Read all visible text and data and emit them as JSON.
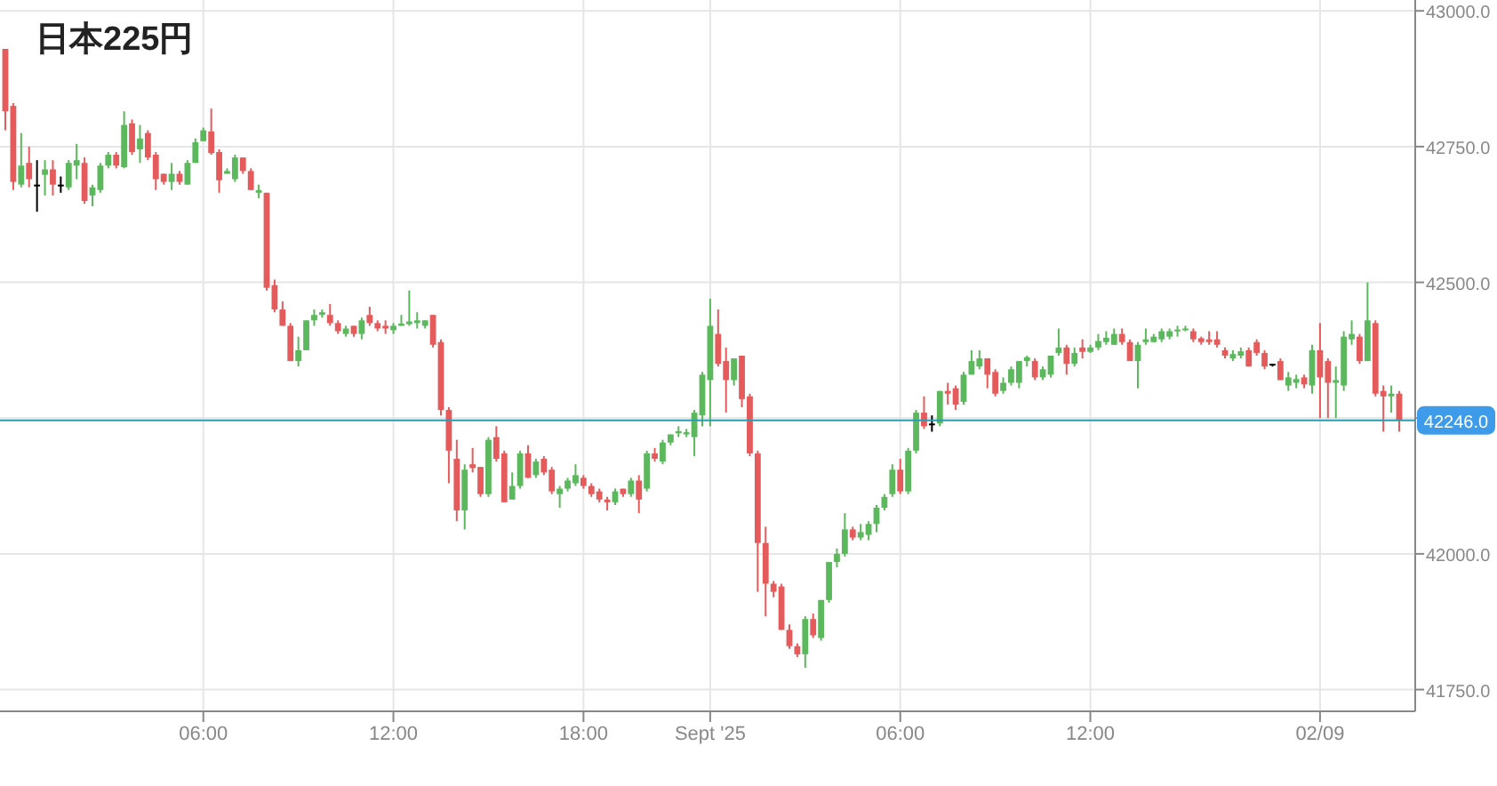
{
  "chart_data": {
    "type": "candlestick",
    "title": "日本225円",
    "categories": [
      null,
      null,
      null,
      null,
      null,
      null,
      null,
      null,
      null,
      null,
      null,
      null,
      null,
      null,
      null,
      null,
      null,
      null,
      null,
      null,
      null,
      null,
      null,
      null,
      null,
      "06:00",
      null,
      null,
      null,
      null,
      null,
      null,
      null,
      null,
      null,
      null,
      null,
      null,
      null,
      null,
      null,
      null,
      null,
      null,
      null,
      null,
      null,
      null,
      null,
      "12:00",
      null,
      null,
      null,
      null,
      null,
      null,
      null,
      null,
      null,
      null,
      null,
      null,
      null,
      null,
      null,
      null,
      null,
      null,
      null,
      null,
      null,
      null,
      null,
      "18:00",
      null,
      null,
      null,
      null,
      null,
      null,
      null,
      null,
      null,
      null,
      null,
      null,
      null,
      null,
      null,
      "Sept '25",
      null,
      null,
      null,
      null,
      null,
      null,
      null,
      null,
      null,
      null,
      null,
      null,
      null,
      null,
      null,
      null,
      null,
      null,
      null,
      null,
      null,
      null,
      null,
      "06:00",
      null,
      null,
      null,
      null,
      null,
      null,
      null,
      null,
      null,
      null,
      null,
      null,
      null,
      null,
      null,
      null,
      null,
      null,
      null,
      null,
      null,
      null,
      null,
      "12:00",
      null,
      null,
      null,
      null,
      null,
      null,
      null,
      null,
      null,
      null,
      null,
      null,
      null,
      null,
      null,
      null,
      null,
      null,
      null,
      null,
      null,
      null,
      null,
      null,
      null,
      null,
      null,
      null,
      "02/09",
      null,
      null,
      null,
      null,
      null,
      null,
      null,
      null,
      null,
      null
    ],
    "ohlc": [
      [
        42930,
        42930,
        42780,
        42815
      ],
      [
        42825,
        42830,
        42670,
        42685
      ],
      [
        42680,
        42775,
        42675,
        42715
      ],
      [
        42720,
        42750,
        42675,
        42690
      ],
      [
        42680,
        42725,
        42630,
        42680
      ],
      [
        42698,
        42725,
        42660,
        42708
      ],
      [
        42708,
        42725,
        42660,
        42680
      ],
      [
        42680,
        42695,
        42665,
        42680
      ],
      [
        42675,
        42725,
        42670,
        42720
      ],
      [
        42715,
        42755,
        42690,
        42725
      ],
      [
        42720,
        42730,
        42645,
        42650
      ],
      [
        42660,
        42680,
        42640,
        42675
      ],
      [
        42670,
        42720,
        42665,
        42715
      ],
      [
        42715,
        42740,
        42710,
        42735
      ],
      [
        42735,
        42740,
        42710,
        42715
      ],
      [
        42712,
        42815,
        42710,
        42790
      ],
      [
        42793,
        42800,
        42735,
        42740
      ],
      [
        42745,
        42790,
        42720,
        42765
      ],
      [
        42775,
        42780,
        42725,
        42730
      ],
      [
        42735,
        42740,
        42670,
        42690
      ],
      [
        42700,
        42700,
        42680,
        42685
      ],
      [
        42685,
        42720,
        42670,
        42700
      ],
      [
        42700,
        42705,
        42680,
        42685
      ],
      [
        42680,
        42725,
        42680,
        42720
      ],
      [
        42720,
        42765,
        42720,
        42758
      ],
      [
        42760,
        42785,
        42760,
        42780
      ],
      [
        42778,
        42820,
        42735,
        42738
      ],
      [
        42740,
        42745,
        42665,
        42688
      ],
      [
        42700,
        42710,
        42700,
        42705
      ],
      [
        42690,
        42735,
        42685,
        42730
      ],
      [
        42730,
        42730,
        42700,
        42705
      ],
      [
        42705,
        42710,
        42670,
        42670
      ],
      [
        42665,
        42680,
        42655,
        42670
      ],
      [
        42665,
        42665,
        42485,
        42490
      ],
      [
        42495,
        42505,
        42445,
        42450
      ],
      [
        42450,
        42465,
        42420,
        42420
      ],
      [
        42420,
        42425,
        42355,
        42355
      ],
      [
        42355,
        42400,
        42345,
        42375
      ],
      [
        42375,
        42430,
        42375,
        42430
      ],
      [
        42430,
        42450,
        42420,
        42440
      ],
      [
        42440,
        42450,
        42435,
        42445
      ],
      [
        42440,
        42460,
        42420,
        42425
      ],
      [
        42425,
        42430,
        42405,
        42410
      ],
      [
        42405,
        42420,
        42400,
        42415
      ],
      [
        42420,
        42420,
        42400,
        42405
      ],
      [
        42405,
        42435,
        42395,
        42430
      ],
      [
        42440,
        42455,
        42420,
        42425
      ],
      [
        42425,
        42430,
        42410,
        42415
      ],
      [
        42420,
        42430,
        42405,
        42415
      ],
      [
        42412,
        42425,
        42405,
        42420
      ],
      [
        42420,
        42440,
        42420,
        42424
      ],
      [
        42423,
        42485,
        42420,
        42428
      ],
      [
        42425,
        42445,
        42415,
        42430
      ],
      [
        42420,
        42430,
        42415,
        42430
      ],
      [
        42440,
        42440,
        42380,
        42385
      ],
      [
        42390,
        42395,
        42255,
        42265
      ],
      [
        42265,
        42270,
        42130,
        42190
      ],
      [
        42175,
        42210,
        42060,
        42080
      ],
      [
        42080,
        42165,
        42045,
        42155
      ],
      [
        42165,
        42195,
        42150,
        42158
      ],
      [
        42160,
        42160,
        42105,
        42110
      ],
      [
        42110,
        42215,
        42105,
        42210
      ],
      [
        42215,
        42235,
        42170,
        42175
      ],
      [
        42185,
        42190,
        42095,
        42095
      ],
      [
        42100,
        42150,
        42100,
        42125
      ],
      [
        42125,
        42190,
        42120,
        42185
      ],
      [
        42185,
        42200,
        42140,
        42140
      ],
      [
        42145,
        42175,
        42140,
        42170
      ],
      [
        42175,
        42180,
        42145,
        42150
      ],
      [
        42155,
        42160,
        42110,
        42115
      ],
      [
        42110,
        42125,
        42085,
        42120
      ],
      [
        42120,
        42140,
        42115,
        42135
      ],
      [
        42130,
        42165,
        42125,
        42145
      ],
      [
        42140,
        42145,
        42120,
        42125
      ],
      [
        42125,
        42130,
        42105,
        42110
      ],
      [
        42115,
        42120,
        42095,
        42100
      ],
      [
        42100,
        42105,
        42080,
        42095
      ],
      [
        42095,
        42120,
        42090,
        42115
      ],
      [
        42120,
        42120,
        42105,
        42110
      ],
      [
        42110,
        42140,
        42105,
        42135
      ],
      [
        42135,
        42145,
        42075,
        42100
      ],
      [
        42120,
        42190,
        42115,
        42185
      ],
      [
        42185,
        42195,
        42170,
        42175
      ],
      [
        42170,
        42210,
        42165,
        42205
      ],
      [
        42205,
        42220,
        42200,
        42220
      ],
      [
        42222,
        42235,
        42215,
        42226
      ],
      [
        42220,
        42230,
        42215,
        42224
      ],
      [
        42215,
        42265,
        42180,
        42260
      ],
      [
        42255,
        42335,
        42235,
        42330
      ],
      [
        42320,
        42470,
        42235,
        42420
      ],
      [
        42405,
        42450,
        42345,
        42350
      ],
      [
        42355,
        42380,
        42260,
        42320
      ],
      [
        42320,
        42360,
        42310,
        42360
      ],
      [
        42365,
        42365,
        42270,
        42285
      ],
      [
        42290,
        42295,
        42180,
        42185
      ],
      [
        42185,
        42190,
        41930,
        42020
      ],
      [
        42020,
        42050,
        41885,
        41945
      ],
      [
        41945,
        41950,
        41920,
        41930
      ],
      [
        41940,
        41945,
        41860,
        41860
      ],
      [
        41860,
        41870,
        41825,
        41830
      ],
      [
        41830,
        41835,
        41810,
        41815
      ],
      [
        41815,
        41885,
        41790,
        41880
      ],
      [
        41880,
        41890,
        41845,
        41850
      ],
      [
        41845,
        41915,
        41840,
        41915
      ],
      [
        41915,
        41985,
        41910,
        41985
      ],
      [
        41985,
        42010,
        41975,
        42000
      ],
      [
        42000,
        42075,
        41995,
        42045
      ],
      [
        42045,
        42050,
        42025,
        42030
      ],
      [
        42030,
        42055,
        42025,
        42040
      ],
      [
        42035,
        42060,
        42025,
        42055
      ],
      [
        42055,
        42090,
        42040,
        42085
      ],
      [
        42085,
        42110,
        42080,
        42105
      ],
      [
        42110,
        42165,
        42105,
        42155
      ],
      [
        42155,
        42175,
        42110,
        42115
      ],
      [
        42115,
        42195,
        42110,
        42190
      ],
      [
        42190,
        42265,
        42185,
        42260
      ],
      [
        42260,
        42290,
        42230,
        42235
      ],
      [
        42240,
        42255,
        42225,
        42240
      ],
      [
        42240,
        42300,
        42235,
        42300
      ],
      [
        42300,
        42315,
        42275,
        42295
      ],
      [
        42305,
        42310,
        42265,
        42275
      ],
      [
        42280,
        42335,
        42275,
        42330
      ],
      [
        42330,
        42375,
        42330,
        42355
      ],
      [
        42345,
        42375,
        42340,
        42360
      ],
      [
        42360,
        42360,
        42305,
        42330
      ],
      [
        42335,
        42340,
        42290,
        42295
      ],
      [
        42300,
        42325,
        42295,
        42315
      ],
      [
        42315,
        42345,
        42310,
        42340
      ],
      [
        42315,
        42355,
        42305,
        42355
      ],
      [
        42355,
        42365,
        42345,
        42362
      ],
      [
        42355,
        42360,
        42320,
        42325
      ],
      [
        42325,
        42345,
        42320,
        42340
      ],
      [
        42330,
        42365,
        42325,
        42365
      ],
      [
        42370,
        42415,
        42365,
        42380
      ],
      [
        42380,
        42385,
        42330,
        42350
      ],
      [
        42350,
        42380,
        42345,
        42370
      ],
      [
        42380,
        42395,
        42360,
        42372
      ],
      [
        42372,
        42385,
        42370,
        42380
      ],
      [
        42380,
        42405,
        42375,
        42392
      ],
      [
        42390,
        42410,
        42385,
        42398
      ],
      [
        42385,
        42415,
        42385,
        42405
      ],
      [
        42405,
        42415,
        42385,
        42390
      ],
      [
        42390,
        42395,
        42355,
        42355
      ],
      [
        42355,
        42390,
        42305,
        42385
      ],
      [
        42390,
        42415,
        42385,
        42395
      ],
      [
        42390,
        42405,
        42390,
        42400
      ],
      [
        42395,
        42415,
        42390,
        42410
      ],
      [
        42400,
        42415,
        42395,
        42410
      ],
      [
        42410,
        42420,
        42400,
        42413
      ],
      [
        42412,
        42420,
        42410,
        42415
      ],
      [
        42410,
        42415,
        42390,
        42395
      ],
      [
        42397,
        42400,
        42385,
        42390
      ],
      [
        42395,
        42410,
        42385,
        42390
      ],
      [
        42395,
        42410,
        42380,
        42385
      ],
      [
        42375,
        42380,
        42360,
        42365
      ],
      [
        42360,
        42375,
        42355,
        42368
      ],
      [
        42365,
        42380,
        42360,
        42373
      ],
      [
        42375,
        42380,
        42345,
        42345
      ],
      [
        42390,
        42395,
        42365,
        42370
      ],
      [
        42370,
        42375,
        42340,
        42345
      ],
      [
        42350,
        42350,
        42345,
        42350
      ],
      [
        42355,
        42360,
        42320,
        42320
      ],
      [
        42310,
        42335,
        42300,
        42325
      ],
      [
        42315,
        42330,
        42305,
        42322
      ],
      [
        42325,
        42330,
        42305,
        42312
      ],
      [
        42310,
        42385,
        42295,
        42375
      ],
      [
        42375,
        42425,
        42250,
        42325
      ],
      [
        42355,
        42360,
        42250,
        42315
      ],
      [
        42315,
        42345,
        42250,
        42320
      ],
      [
        42310,
        42410,
        42300,
        42400
      ],
      [
        42395,
        42430,
        42385,
        42405
      ],
      [
        42400,
        42405,
        42350,
        42355
      ],
      [
        42355,
        42500,
        42355,
        42430
      ],
      [
        42425,
        42430,
        42290,
        42295
      ],
      [
        42300,
        42310,
        42225,
        42290
      ],
      [
        42290,
        42310,
        42260,
        42295
      ],
      [
        42295,
        42300,
        42225,
        42246
      ]
    ],
    "colors": [
      "#e55b5b",
      "#e55b5b",
      "#5cb85c",
      "#e55b5b",
      "#000000",
      "#5cb85c",
      "#e55b5b",
      "#000000",
      "#5cb85c",
      "#5cb85c",
      "#e55b5b",
      "#5cb85c",
      "#5cb85c",
      "#5cb85c",
      "#e55b5b",
      "#5cb85c",
      "#e55b5b",
      "#5cb85c",
      "#e55b5b",
      "#e55b5b",
      "#e55b5b",
      "#5cb85c",
      "#e55b5b",
      "#5cb85c",
      "#5cb85c",
      "#5cb85c",
      "#e55b5b",
      "#e55b5b",
      "#5cb85c",
      "#5cb85c",
      "#e55b5b",
      "#e55b5b",
      "#5cb85c",
      "#e55b5b",
      "#e55b5b",
      "#e55b5b",
      "#e55b5b",
      "#5cb85c",
      "#5cb85c",
      "#5cb85c",
      "#5cb85c",
      "#e55b5b",
      "#e55b5b",
      "#5cb85c",
      "#e55b5b",
      "#5cb85c",
      "#e55b5b",
      "#e55b5b",
      "#e55b5b",
      "#5cb85c",
      "#5cb85c",
      "#5cb85c",
      "#5cb85c",
      "#5cb85c",
      "#e55b5b",
      "#e55b5b",
      "#e55b5b",
      "#e55b5b",
      "#5cb85c",
      "#e55b5b",
      "#e55b5b",
      "#5cb85c",
      "#e55b5b",
      "#e55b5b",
      "#5cb85c",
      "#5cb85c",
      "#e55b5b",
      "#5cb85c",
      "#e55b5b",
      "#e55b5b",
      "#5cb85c",
      "#5cb85c",
      "#5cb85c",
      "#e55b5b",
      "#e55b5b",
      "#e55b5b",
      "#e55b5b",
      "#5cb85c",
      "#e55b5b",
      "#5cb85c",
      "#e55b5b",
      "#5cb85c",
      "#e55b5b",
      "#5cb85c",
      "#5cb85c",
      "#5cb85c",
      "#5cb85c",
      "#5cb85c",
      "#5cb85c",
      "#5cb85c",
      "#e55b5b",
      "#e55b5b",
      "#5cb85c",
      "#e55b5b",
      "#e55b5b",
      "#e55b5b",
      "#e55b5b",
      "#e55b5b",
      "#e55b5b",
      "#e55b5b",
      "#e55b5b",
      "#5cb85c",
      "#e55b5b",
      "#5cb85c",
      "#5cb85c",
      "#5cb85c",
      "#5cb85c",
      "#e55b5b",
      "#5cb85c",
      "#5cb85c",
      "#5cb85c",
      "#5cb85c",
      "#5cb85c",
      "#e55b5b",
      "#5cb85c",
      "#5cb85c",
      "#e55b5b",
      "#000000",
      "#5cb85c",
      "#e55b5b",
      "#e55b5b",
      "#5cb85c",
      "#5cb85c",
      "#5cb85c",
      "#e55b5b",
      "#e55b5b",
      "#5cb85c",
      "#5cb85c",
      "#5cb85c",
      "#5cb85c",
      "#e55b5b",
      "#5cb85c",
      "#5cb85c",
      "#5cb85c",
      "#e55b5b",
      "#5cb85c",
      "#e55b5b",
      "#5cb85c",
      "#5cb85c",
      "#5cb85c",
      "#5cb85c",
      "#e55b5b",
      "#e55b5b",
      "#5cb85c",
      "#5cb85c",
      "#5cb85c",
      "#5cb85c",
      "#5cb85c",
      "#5cb85c",
      "#5cb85c",
      "#e55b5b",
      "#e55b5b",
      "#e55b5b",
      "#e55b5b",
      "#e55b5b",
      "#5cb85c",
      "#5cb85c",
      "#e55b5b",
      "#e55b5b",
      "#e55b5b",
      "#000000",
      "#e55b5b",
      "#5cb85c",
      "#5cb85c",
      "#e55b5b",
      "#5cb85c",
      "#e55b5b",
      "#e55b5b",
      "#5cb85c",
      "#5cb85c",
      "#5cb85c",
      "#e55b5b",
      "#5cb85c",
      "#e55b5b",
      "#e55b5b",
      "#5cb85c",
      "#e55b5b"
    ],
    "ylim": [
      41710,
      43020
    ],
    "yticks": [
      {
        "value": 41750,
        "label": "41750.0"
      },
      {
        "value": 42000,
        "label": "42000.0"
      },
      {
        "value": 42250,
        "label": null
      },
      {
        "value": 42500,
        "label": "42500.0"
      },
      {
        "value": 42750,
        "label": "42750.0"
      },
      {
        "value": 43000,
        "label": "43000.0"
      }
    ],
    "ref_lines": [
      {
        "axis": "y",
        "value": 42246,
        "label": "42246.0",
        "color": "#2a9db5"
      }
    ],
    "grid": true
  }
}
